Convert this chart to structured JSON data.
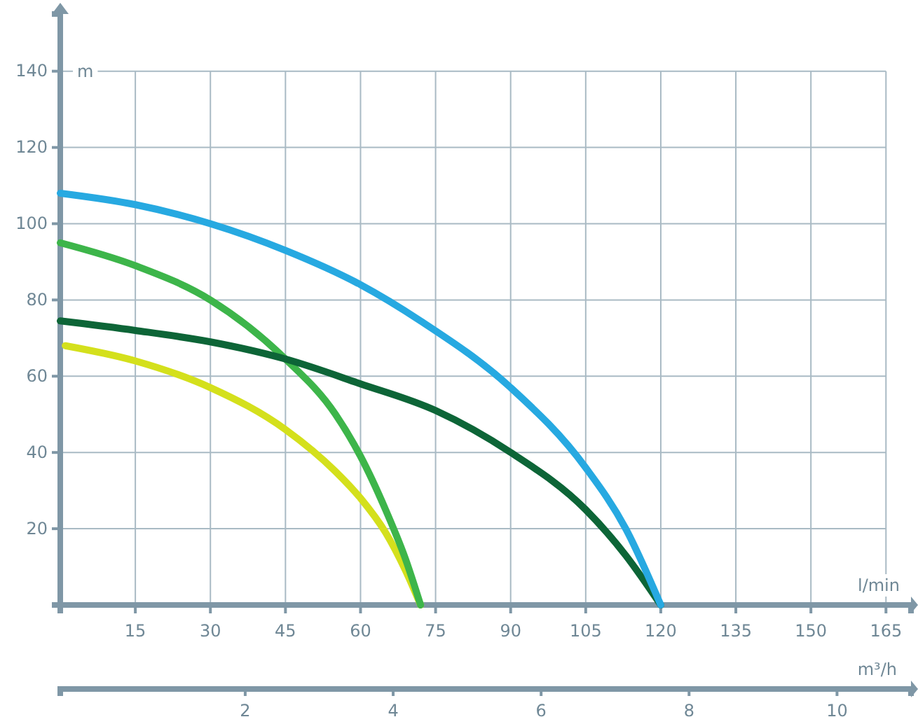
{
  "chart_data": {
    "type": "line",
    "ylabel": "m",
    "xlabel": "l/min",
    "x2label": "m³/h",
    "xlim": [
      0,
      170
    ],
    "xticks": [
      15,
      30,
      45,
      60,
      75,
      90,
      105,
      120,
      135,
      150,
      165
    ],
    "ylim": [
      0,
      155
    ],
    "yticks": [
      20,
      40,
      60,
      80,
      100,
      120,
      140
    ],
    "x2lim": [
      -0.5,
      11
    ],
    "x2ticks": [
      2,
      4,
      6,
      8,
      10
    ],
    "grid": true,
    "marker": "none",
    "line_style": "solid",
    "series": [
      {
        "color": "#d4e01c",
        "x": [
          1,
          15,
          30,
          45,
          55,
          60,
          65,
          69,
          72
        ],
        "values": [
          68,
          64,
          57,
          46,
          35,
          28,
          19,
          9,
          0
        ]
      },
      {
        "color": "#3db54a",
        "x": [
          0,
          15,
          30,
          45,
          55,
          60,
          65,
          69,
          72
        ],
        "values": [
          95,
          89,
          80,
          64.5,
          50,
          39,
          25,
          12,
          0
        ]
      },
      {
        "color": "#0d6537",
        "x": [
          0,
          15,
          30,
          45,
          60,
          75,
          90,
          105,
          113,
          120
        ],
        "values": [
          74.5,
          72,
          69,
          64.5,
          58,
          51,
          40,
          25,
          13,
          0
        ]
      },
      {
        "color": "#27a9e1",
        "x": [
          0,
          15,
          30,
          45,
          60,
          72,
          90,
          105,
          113,
          120
        ],
        "values": [
          108,
          105,
          100,
          93,
          84,
          74.5,
          57,
          36,
          20,
          0
        ]
      }
    ]
  }
}
